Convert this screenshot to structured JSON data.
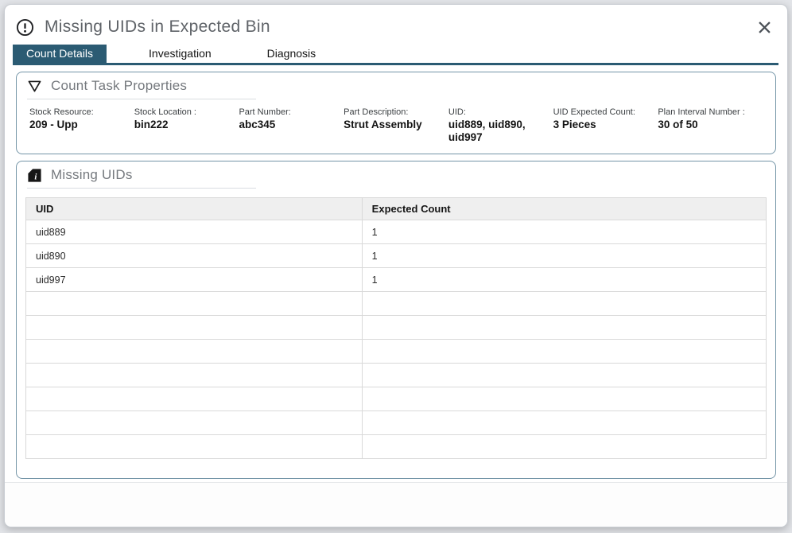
{
  "dialog": {
    "title": "Missing UIDs in Expected Bin"
  },
  "tabs": [
    {
      "label": "Count Details",
      "active": true
    },
    {
      "label": "Investigation",
      "active": false
    },
    {
      "label": "Diagnosis",
      "active": false
    }
  ],
  "count_task_properties": {
    "title": "Count Task Properties",
    "icon": "collapse-triangle-icon",
    "fields": [
      {
        "label": "Stock Resource:",
        "value": "209 - Upp"
      },
      {
        "label": "Stock Location :",
        "value": "bin222"
      },
      {
        "label": "Part Number:",
        "value": "abc345"
      },
      {
        "label": "Part Description:",
        "value": "Strut Assembly"
      },
      {
        "label": "UID:",
        "value": "uid889, uid890, uid997"
      },
      {
        "label": "UID Expected Count:",
        "value": "3 Pieces"
      },
      {
        "label": "Plan Interval Number :",
        "value": "30 of 50"
      }
    ]
  },
  "missing_uids": {
    "title": "Missing UIDs",
    "icon": "document-info-icon",
    "table": {
      "columns": [
        "UID",
        "Expected Count"
      ],
      "rows": [
        [
          "uid889",
          "1"
        ],
        [
          "uid890",
          "1"
        ],
        [
          "uid997",
          "1"
        ],
        [
          "",
          ""
        ],
        [
          "",
          ""
        ],
        [
          "",
          ""
        ],
        [
          "",
          ""
        ],
        [
          "",
          ""
        ],
        [
          "",
          ""
        ],
        [
          "",
          ""
        ]
      ]
    }
  },
  "colors": {
    "accent_tab": "#2b5b73",
    "panel_border": "#7495a7",
    "table_header_bg": "#efefef",
    "title_gray": "#5f6368"
  }
}
